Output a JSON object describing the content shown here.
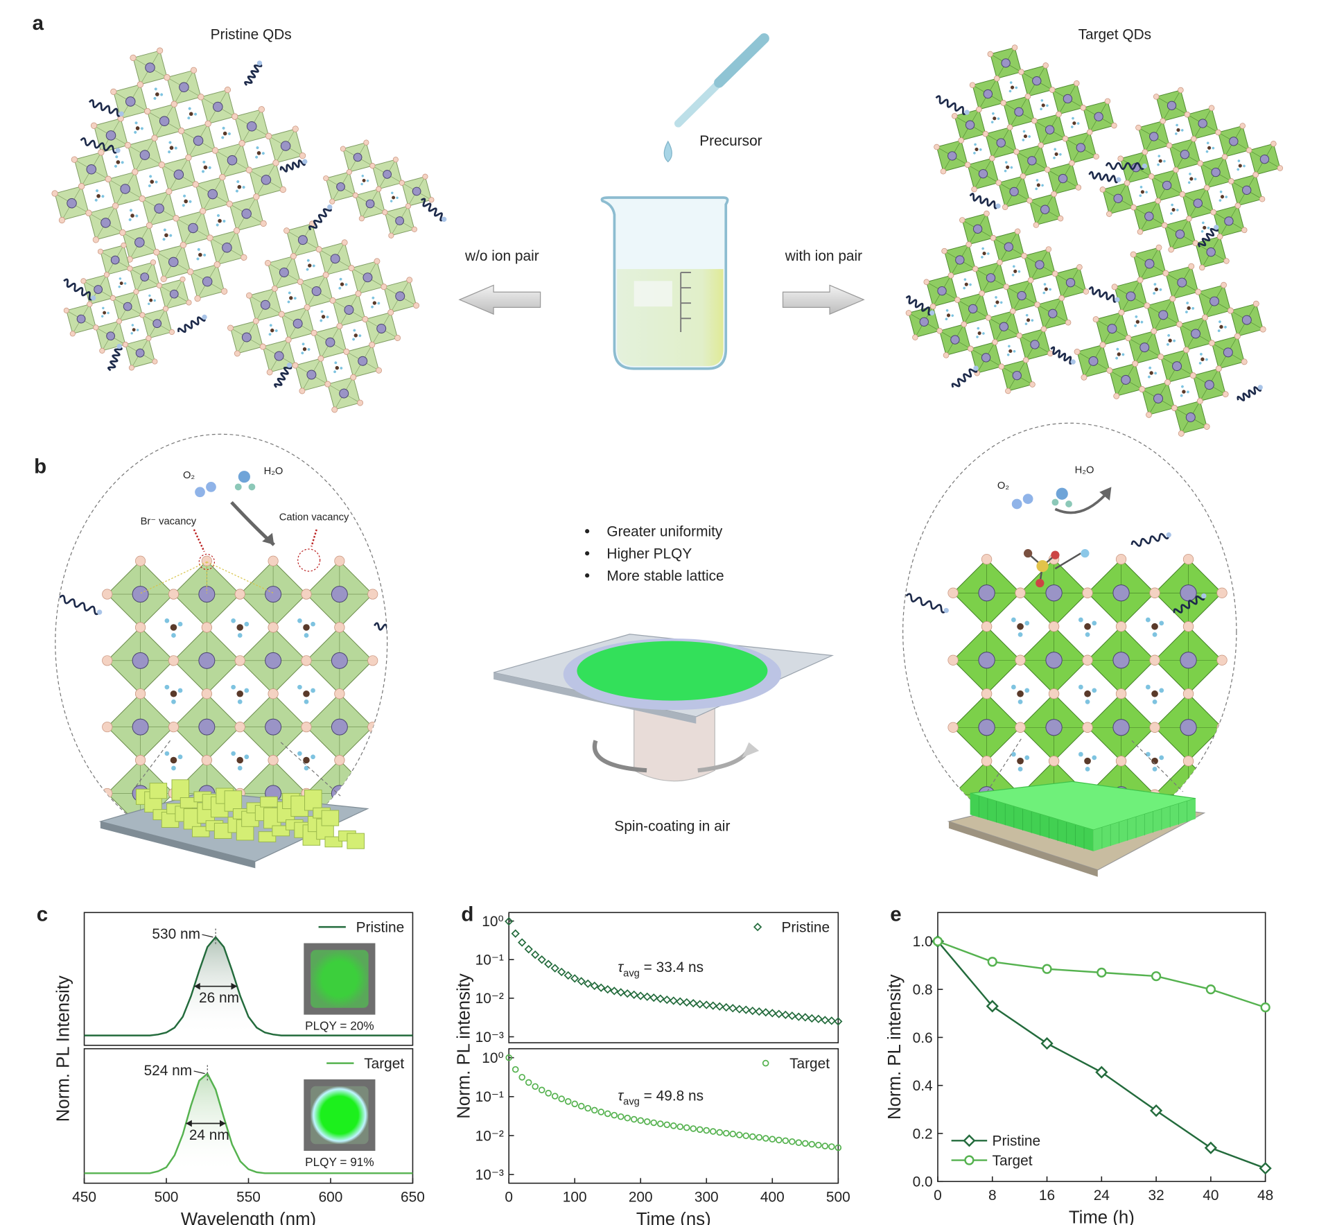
{
  "panels": {
    "a": {
      "label": "a",
      "left_title": "Pristine QDs",
      "right_title": "Target QDs",
      "precursor": "Precursor",
      "left_arrow": "w/o ion pair",
      "right_arrow": "with ion pair"
    },
    "b": {
      "label": "b",
      "left_o2": "O₂",
      "left_h2o": "H₂O",
      "br_vacancy": "Br⁻ vacancy",
      "cation_vacancy": "Cation vacancy",
      "bullets": [
        "Greater uniformity",
        "Higher PLQY",
        "More stable lattice"
      ],
      "caption": "Spin-coating in air",
      "right_o2": "O₂",
      "right_h2o": "H₂O"
    }
  },
  "chart_data": [
    {
      "type": "line",
      "panel": "c",
      "ylabel": "Norm. PL Intensity",
      "area_fill": true,
      "legend": "upper right",
      "x": [
        450,
        455,
        460,
        465,
        470,
        475,
        480,
        485,
        490,
        495,
        500,
        505,
        510,
        515,
        520,
        525,
        530,
        535,
        540,
        545,
        550,
        555,
        560,
        565,
        570,
        575,
        580,
        585,
        590,
        595,
        600,
        605,
        610,
        615,
        620,
        625,
        630,
        635,
        640,
        645,
        650
      ],
      "series": [
        {
          "name": "Pristine",
          "color": "#236b3c",
          "values": [
            0,
            0,
            0,
            0,
            0,
            0,
            0,
            0,
            0,
            0.01,
            0.03,
            0.08,
            0.19,
            0.4,
            0.66,
            0.9,
            1,
            0.9,
            0.66,
            0.4,
            0.19,
            0.08,
            0.03,
            0.01,
            0,
            0,
            0,
            0,
            0,
            0,
            0,
            0,
            0,
            0,
            0,
            0,
            0,
            0,
            0,
            0,
            0
          ]
        }
      ],
      "peak_label": "530 nm",
      "fwhm_label": "26 nm",
      "plqy_label": "PLQY = 20%",
      "xlim": [
        450,
        650
      ],
      "ylim": [
        -0.1,
        1.25
      ]
    },
    {
      "type": "line",
      "xlabel": "Wavelength (nm)",
      "area_fill": true,
      "legend": "upper right",
      "x": [
        450,
        455,
        460,
        465,
        470,
        475,
        480,
        485,
        490,
        495,
        500,
        505,
        510,
        515,
        520,
        525,
        530,
        535,
        540,
        545,
        550,
        555,
        560,
        565,
        570,
        575,
        580,
        585,
        590,
        595,
        600,
        605,
        610,
        615,
        620,
        625,
        630,
        635,
        640,
        645,
        650
      ],
      "series": [
        {
          "name": "Target",
          "color": "#55b24f",
          "values": [
            0,
            0,
            0,
            0,
            0,
            0,
            0,
            0,
            0,
            0.02,
            0.06,
            0.18,
            0.39,
            0.68,
            0.93,
            1,
            0.84,
            0.56,
            0.29,
            0.12,
            0.04,
            0.01,
            0,
            0,
            0,
            0,
            0,
            0,
            0,
            0,
            0,
            0,
            0,
            0,
            0,
            0,
            0,
            0,
            0,
            0,
            0
          ]
        }
      ],
      "peak_label": "524 nm",
      "fwhm_label": "24 nm",
      "plqy_label": "PLQY = 91%",
      "xlim": [
        450,
        650
      ],
      "ylim": [
        -0.1,
        1.25
      ],
      "xticks": [
        450,
        500,
        550,
        600,
        650
      ]
    },
    {
      "type": "scatter",
      "panel": "d",
      "ylabel": "Norm. PL intensity",
      "log_y": true,
      "legend": "upper right",
      "x": [
        0,
        10,
        20,
        30,
        40,
        50,
        60,
        70,
        80,
        90,
        100,
        110,
        120,
        130,
        140,
        150,
        160,
        170,
        180,
        190,
        200,
        210,
        220,
        230,
        240,
        250,
        260,
        270,
        280,
        290,
        300,
        310,
        320,
        330,
        340,
        350,
        360,
        370,
        380,
        390,
        400,
        410,
        420,
        430,
        440,
        450,
        460,
        470,
        480,
        490,
        500
      ],
      "series": [
        {
          "name": "Pristine",
          "color": "#236b3c",
          "marker": "diamond",
          "values": [
            0.98,
            0.473,
            0.278,
            0.186,
            0.134,
            0.1,
            0.0766,
            0.0599,
            0.0479,
            0.039,
            0.0325,
            0.0275,
            0.0238,
            0.0209,
            0.0187,
            0.0169,
            0.0154,
            0.0142,
            0.0132,
            0.0123,
            0.0115,
            0.0109,
            0.0103,
            0.0097,
            0.0091,
            0.0086,
            0.0082,
            0.0078,
            0.0074,
            0.007,
            0.0067,
            0.0064,
            0.0061,
            0.0058,
            0.0055,
            0.0052,
            0.005,
            0.0047,
            0.0045,
            0.0043,
            0.0041,
            0.0039,
            0.0037,
            0.0035,
            0.0033,
            0.0032,
            0.003,
            0.0029,
            0.0027,
            0.0026,
            0.0025
          ]
        }
      ],
      "annotation": {
        "symbol": "τ",
        "subscript": "avg",
        "text": " = 33.4 ns"
      },
      "xlim": [
        0,
        500
      ],
      "ylim": [
        0.0007,
        1.66
      ],
      "yticks": [
        {
          "value": 1,
          "label": "10⁰"
        },
        {
          "value": 0.1,
          "label": "10⁻¹"
        },
        {
          "value": 0.01,
          "label": "10⁻²"
        },
        {
          "value": 0.001,
          "label": "10⁻³"
        }
      ]
    },
    {
      "type": "scatter",
      "xlabel": "Time (ns)",
      "log_y": true,
      "legend": "upper right",
      "x": [
        0,
        10,
        20,
        30,
        40,
        50,
        60,
        70,
        80,
        90,
        100,
        110,
        120,
        130,
        140,
        150,
        160,
        170,
        180,
        190,
        200,
        210,
        220,
        230,
        240,
        250,
        260,
        270,
        280,
        290,
        300,
        310,
        320,
        330,
        340,
        350,
        360,
        370,
        380,
        390,
        400,
        410,
        420,
        430,
        440,
        450,
        460,
        470,
        480,
        490,
        500
      ],
      "series": [
        {
          "name": "Target",
          "color": "#55b24f",
          "marker": "circle",
          "values": [
            1,
            0.499,
            0.315,
            0.231,
            0.182,
            0.148,
            0.123,
            0.103,
            0.0876,
            0.0752,
            0.0651,
            0.057,
            0.0503,
            0.0449,
            0.0404,
            0.0365,
            0.0334,
            0.0306,
            0.0283,
            0.0262,
            0.0244,
            0.0228,
            0.0214,
            0.0201,
            0.019,
            0.0179,
            0.0169,
            0.016,
            0.0151,
            0.0143,
            0.0136,
            0.0128,
            0.0121,
            0.0115,
            0.011,
            0.0104,
            0.0099,
            0.0094,
            0.009,
            0.0085,
            0.0081,
            0.0077,
            0.0074,
            0.007,
            0.0066,
            0.0063,
            0.006,
            0.0057,
            0.0054,
            0.0052,
            0.0049
          ]
        }
      ],
      "annotation": {
        "symbol": "τ",
        "subscript": "avg",
        "text": " = 49.8 ns"
      },
      "xlim": [
        0,
        500
      ],
      "ylim": [
        0.0006,
        1.7
      ],
      "xticks": [
        0,
        100,
        200,
        300,
        400,
        500
      ],
      "yticks": [
        {
          "value": 1,
          "label": "10⁰"
        },
        {
          "value": 0.1,
          "label": "10⁻¹"
        },
        {
          "value": 0.01,
          "label": "10⁻²"
        },
        {
          "value": 0.001,
          "label": "10⁻³"
        }
      ]
    },
    {
      "type": "line",
      "panel": "e",
      "xlabel": "Time (h)",
      "ylabel": "Norm. PL intensity",
      "legend": "lower left",
      "x": [
        0,
        8,
        16,
        24,
        32,
        40,
        48
      ],
      "series": [
        {
          "name": "Pristine",
          "color": "#236b3c",
          "marker": "diamond",
          "values": [
            1.0,
            0.73,
            0.575,
            0.455,
            0.295,
            0.14,
            0.055
          ]
        },
        {
          "name": "Target",
          "color": "#55b24f",
          "marker": "circle",
          "values": [
            1.0,
            0.915,
            0.885,
            0.87,
            0.855,
            0.8,
            0.725
          ]
        }
      ],
      "xlim": [
        0,
        48
      ],
      "ylim": [
        0,
        1.12
      ],
      "xticks": [
        0,
        8,
        16,
        24,
        32,
        40,
        48
      ],
      "yticks": [
        {
          "value": 0,
          "label": "0.0"
        },
        0.2,
        0.4,
        0.6,
        0.8,
        {
          "value": 1,
          "label": "1.0"
        }
      ]
    }
  ]
}
